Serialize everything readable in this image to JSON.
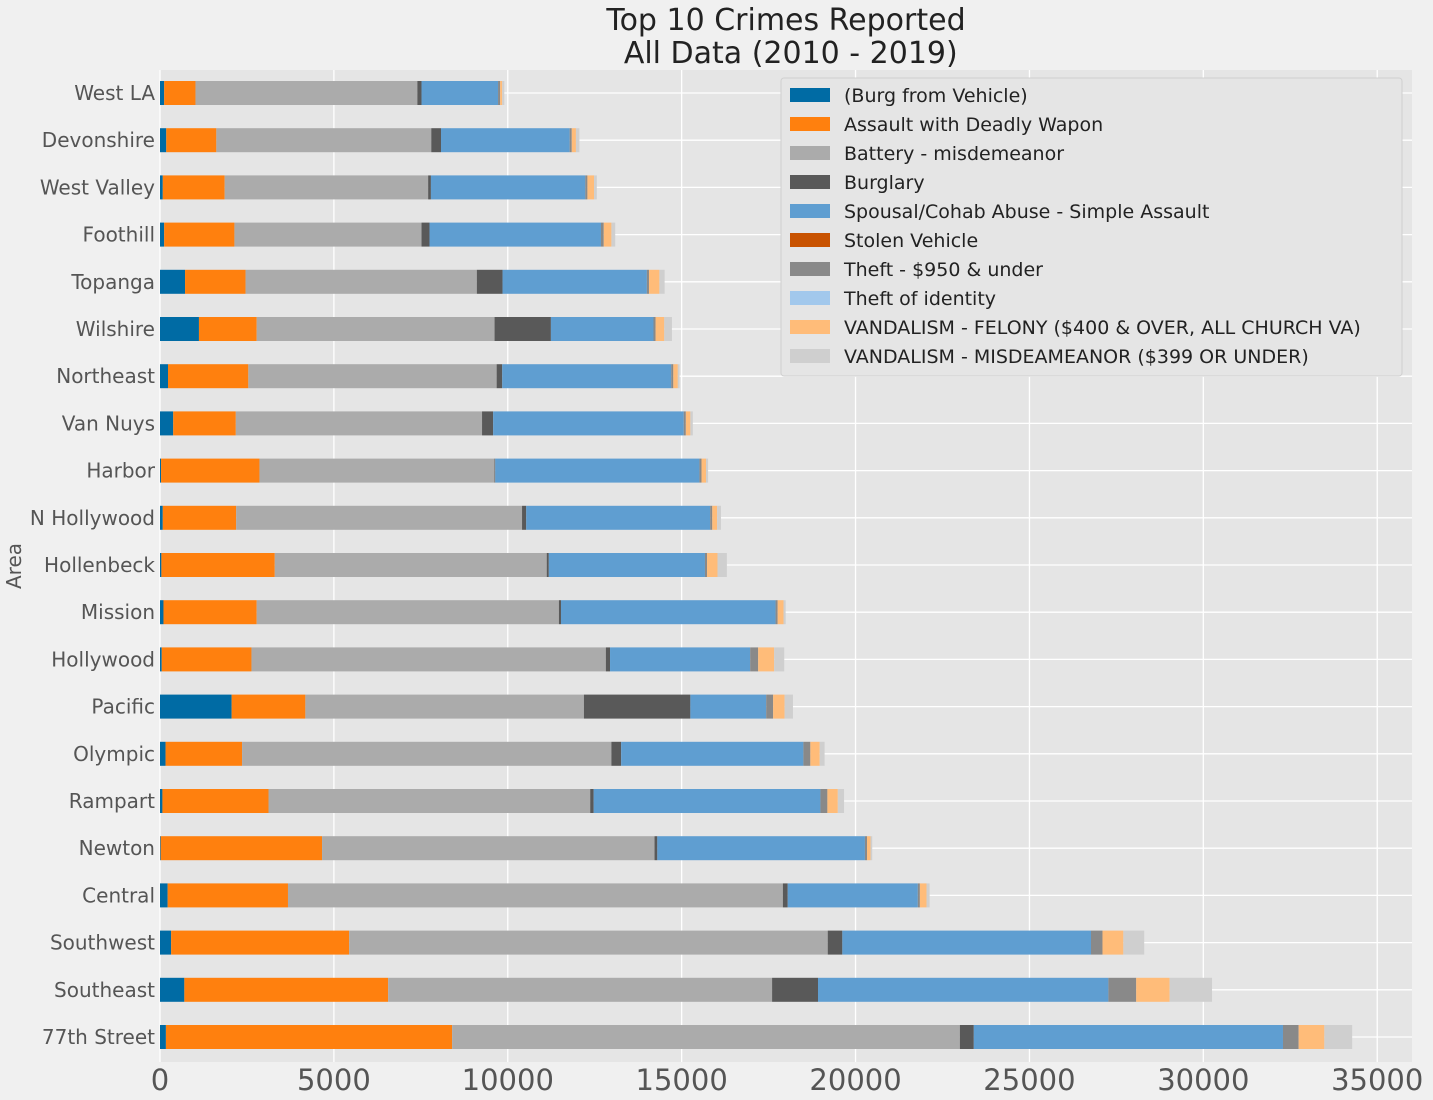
{
  "chart_data": {
    "type": "bar",
    "orientation": "horizontal",
    "stacked": true,
    "title": "Top 10 Crimes Reported\n All Data (2010 - 2019)",
    "xlabel": "",
    "ylabel": "Area",
    "xlim": [
      0,
      36000
    ],
    "xticks": [
      0,
      5000,
      10000,
      15000,
      20000,
      25000,
      30000,
      35000
    ],
    "grid": true,
    "legend_position": "top-right",
    "categories": [
      "West LA",
      "Devonshire",
      "West Valley",
      "Foothill",
      "Topanga",
      "Wilshire",
      "Northeast",
      "Van Nuys",
      "Harbor",
      "N Hollywood",
      "Hollenbeck",
      "Mission",
      "Hollywood",
      "Pacific",
      "Olympic",
      "Rampart",
      "Newton",
      "Central",
      "Southwest",
      "Southeast",
      "77th Street"
    ],
    "series": [
      {
        "name": "(Burg from Vehicle)",
        "color": "#006ba4",
        "values": [
          120,
          180,
          80,
          120,
          720,
          1120,
          230,
          380,
          30,
          80,
          40,
          100,
          50,
          2060,
          160,
          70,
          20,
          220,
          320,
          700,
          170
        ]
      },
      {
        "name": "Assault with Deadly Wapon",
        "color": "#ff800e",
        "values": [
          900,
          1440,
          1780,
          2020,
          1740,
          1660,
          2310,
          1800,
          2830,
          2110,
          3260,
          2680,
          2580,
          2120,
          2200,
          3050,
          4640,
          3460,
          5120,
          5860,
          8230
        ]
      },
      {
        "name": "Battery - misdemeanor",
        "color": "#ababab",
        "values": [
          6380,
          6180,
          5850,
          5380,
          6650,
          6840,
          7140,
          7080,
          6760,
          8220,
          7820,
          8690,
          10190,
          8010,
          10620,
          9250,
          9560,
          14230,
          13760,
          11040,
          14600
        ]
      },
      {
        "name": "Burglary",
        "color": "#595959",
        "values": [
          120,
          280,
          80,
          230,
          740,
          1620,
          160,
          320,
          20,
          120,
          60,
          60,
          120,
          3060,
          280,
          100,
          80,
          140,
          420,
          1320,
          400
        ]
      },
      {
        "name": "Spousal/Cohab Abuse - Simple Assault",
        "color": "#5f9ed1",
        "values": [
          2200,
          3700,
          4440,
          4930,
          4150,
          2950,
          4860,
          5480,
          5870,
          5290,
          4490,
          6170,
          4030,
          2180,
          5240,
          6520,
          5970,
          3740,
          7150,
          8350,
          8890
        ]
      },
      {
        "name": "Stolen Vehicle",
        "color": "#c85200",
        "values": [
          0,
          0,
          0,
          0,
          0,
          0,
          0,
          0,
          0,
          0,
          0,
          0,
          0,
          0,
          0,
          0,
          0,
          0,
          0,
          0,
          0
        ]
      },
      {
        "name": "Theft - $950 & under",
        "color": "#898989",
        "values": [
          60,
          60,
          60,
          80,
          60,
          60,
          60,
          60,
          60,
          60,
          60,
          60,
          230,
          200,
          200,
          200,
          60,
          60,
          330,
          800,
          450
        ]
      },
      {
        "name": "Theft of identity",
        "color": "#a2c8ec",
        "values": [
          0,
          0,
          0,
          0,
          0,
          0,
          0,
          0,
          0,
          0,
          0,
          0,
          0,
          0,
          0,
          0,
          0,
          0,
          0,
          0,
          0
        ]
      },
      {
        "name": "VANDALISM - FELONY ($400 & OVER, ALL CHURCH VA)",
        "color": "#ffbc79",
        "values": [
          60,
          120,
          190,
          220,
          300,
          250,
          130,
          130,
          130,
          140,
          300,
          170,
          460,
          330,
          270,
          300,
          100,
          190,
          600,
          960,
          740
        ]
      },
      {
        "name": "VANDALISM - MISDEAMEANOR ($399 OR UNDER)",
        "color": "#cfcfcf",
        "values": [
          60,
          100,
          80,
          110,
          150,
          220,
          50,
          70,
          60,
          110,
          270,
          60,
          290,
          240,
          140,
          180,
          50,
          90,
          600,
          1220,
          800
        ]
      }
    ]
  }
}
